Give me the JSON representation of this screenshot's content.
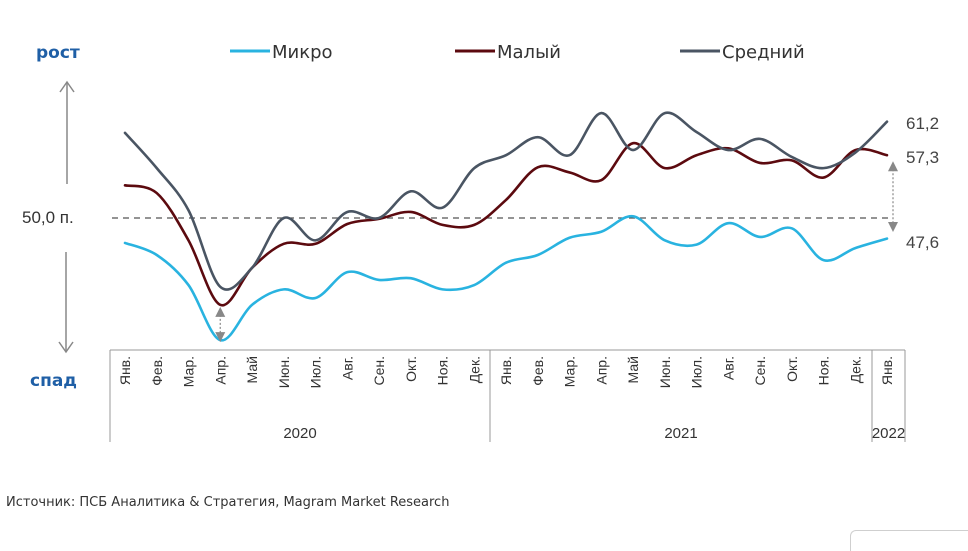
{
  "chart_data": {
    "type": "line",
    "title": "",
    "xlabel": "",
    "ylabel": "",
    "y_direction_labels": {
      "up": "рост",
      "down": "спад"
    },
    "reference_line": {
      "value": 50.0,
      "label": "50,0 п.",
      "style": "dashed"
    },
    "categories": [
      "Янв.",
      "Фев.",
      "Мар.",
      "Апр.",
      "Май",
      "Июн.",
      "Июл.",
      "Авг.",
      "Сен.",
      "Окт.",
      "Ноя.",
      "Дек.",
      "Янв.",
      "Фев.",
      "Мар.",
      "Апр.",
      "Май",
      "Июн.",
      "Июл.",
      "Авг.",
      "Сен.",
      "Окт.",
      "Ноя.",
      "Дек.",
      "Янв."
    ],
    "year_groups": [
      {
        "label": "2020",
        "count": 12
      },
      {
        "label": "2021",
        "count": 12
      },
      {
        "label": "2022",
        "count": 1
      }
    ],
    "ylim": [
      34,
      64
    ],
    "grid": false,
    "legend_position": "top",
    "series": [
      {
        "name": "Микро",
        "color": "#29b3e0",
        "values": [
          47.1,
          45.7,
          42.2,
          35.8,
          39.9,
          41.7,
          40.7,
          43.7,
          42.8,
          43.0,
          41.7,
          42.2,
          44.8,
          45.7,
          47.7,
          48.4,
          50.2,
          47.4,
          46.9,
          49.4,
          47.8,
          48.8,
          45.1,
          46.5,
          47.6
        ],
        "end_label": "47,6"
      },
      {
        "name": "Малый",
        "color": "#5c0a0f",
        "values": [
          53.8,
          52.9,
          47.4,
          39.9,
          44.2,
          47.0,
          47.0,
          49.3,
          49.9,
          50.7,
          49.2,
          49.2,
          52.1,
          55.9,
          55.3,
          54.4,
          58.7,
          55.8,
          57.3,
          58.1,
          56.4,
          56.7,
          54.7,
          57.9,
          57.3
        ],
        "end_label": "57,3"
      },
      {
        "name": "Средний",
        "color": "#4a5563",
        "values": [
          59.9,
          55.8,
          50.9,
          42.0,
          44.2,
          50.0,
          47.4,
          50.7,
          50.0,
          53.1,
          51.2,
          55.8,
          57.3,
          59.4,
          57.3,
          62.2,
          57.9,
          62.2,
          60.0,
          57.9,
          59.2,
          57.1,
          55.8,
          57.6,
          61.2
        ],
        "end_label": "61,2"
      }
    ],
    "annotations": [
      {
        "type": "double-arrow",
        "at_category_index": 3,
        "between": [
          "Малый",
          "Микро"
        ]
      },
      {
        "type": "double-arrow",
        "at_category_index": 24,
        "between": [
          "Малый",
          "reference_line"
        ]
      }
    ]
  },
  "source": "Источник: ПСБ Аналитика & Стратегия, Magram Market Research"
}
